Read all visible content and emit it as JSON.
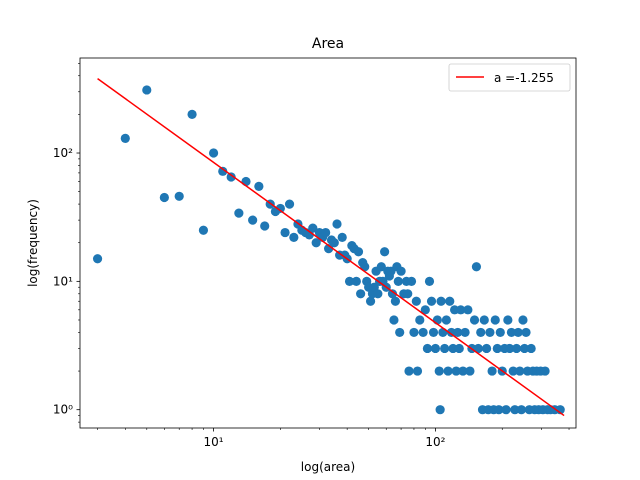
{
  "chart_data": {
    "type": "scatter",
    "title": "Area",
    "xlabel": "log(area)",
    "ylabel": "log(frequency)",
    "xscale": "log",
    "yscale": "log",
    "xlim": [
      2.5,
      430
    ],
    "ylim": [
      0.72,
      550
    ],
    "grid": false,
    "legend_position": "top-right",
    "x_ticks": [
      {
        "value": 10,
        "label": "10¹"
      },
      {
        "value": 100,
        "label": "10²"
      }
    ],
    "y_ticks": [
      {
        "value": 1,
        "label": "10⁰"
      },
      {
        "value": 10,
        "label": "10¹"
      },
      {
        "value": 100,
        "label": "10²"
      }
    ],
    "colors": {
      "points": "#1f77b4",
      "fit": "#ff0000"
    },
    "series": [
      {
        "type": "scatter",
        "points": [
          [
            3,
            15
          ],
          [
            4,
            130
          ],
          [
            5,
            310
          ],
          [
            6,
            45
          ],
          [
            7,
            46
          ],
          [
            8,
            200
          ],
          [
            9,
            25
          ],
          [
            10,
            100
          ],
          [
            11,
            72
          ],
          [
            12,
            65
          ],
          [
            13,
            34
          ],
          [
            14,
            60
          ],
          [
            15,
            30
          ],
          [
            16,
            55
          ],
          [
            17,
            27
          ],
          [
            18,
            40
          ],
          [
            19,
            35
          ],
          [
            20,
            37
          ],
          [
            21,
            24
          ],
          [
            22,
            40
          ],
          [
            23,
            22
          ],
          [
            24,
            28
          ],
          [
            25,
            25
          ],
          [
            26,
            24
          ],
          [
            27,
            23
          ],
          [
            28,
            26
          ],
          [
            29,
            20
          ],
          [
            30,
            24
          ],
          [
            31,
            22
          ],
          [
            32,
            24
          ],
          [
            33,
            18
          ],
          [
            34,
            21
          ],
          [
            35,
            20
          ],
          [
            36,
            28
          ],
          [
            37,
            16
          ],
          [
            38,
            22
          ],
          [
            39,
            16
          ],
          [
            40,
            15
          ],
          [
            41,
            10
          ],
          [
            42,
            19
          ],
          [
            43,
            18
          ],
          [
            44,
            10
          ],
          [
            45,
            17
          ],
          [
            46,
            8
          ],
          [
            47,
            14
          ],
          [
            48,
            13
          ],
          [
            49,
            10
          ],
          [
            50,
            9
          ],
          [
            51,
            7
          ],
          [
            52,
            8
          ],
          [
            53,
            9
          ],
          [
            54,
            12
          ],
          [
            55,
            8
          ],
          [
            56,
            10
          ],
          [
            57,
            13
          ],
          [
            58,
            10
          ],
          [
            59,
            17
          ],
          [
            60,
            9
          ],
          [
            61,
            12
          ],
          [
            62,
            11
          ],
          [
            63,
            12
          ],
          [
            64,
            8
          ],
          [
            65,
            5
          ],
          [
            66,
            7
          ],
          [
            67,
            13
          ],
          [
            68,
            10
          ],
          [
            69,
            4
          ],
          [
            70,
            12
          ],
          [
            72,
            8
          ],
          [
            74,
            10
          ],
          [
            75,
            8
          ],
          [
            76,
            2
          ],
          [
            78,
            10
          ],
          [
            80,
            4
          ],
          [
            82,
            7
          ],
          [
            83,
            2
          ],
          [
            85,
            5
          ],
          [
            88,
            4
          ],
          [
            90,
            6
          ],
          [
            92,
            3
          ],
          [
            94,
            10
          ],
          [
            96,
            7
          ],
          [
            98,
            4
          ],
          [
            100,
            3
          ],
          [
            102,
            5
          ],
          [
            104,
            2
          ],
          [
            105,
            1
          ],
          [
            106,
            7
          ],
          [
            108,
            4
          ],
          [
            110,
            3
          ],
          [
            112,
            5
          ],
          [
            114,
            2
          ],
          [
            116,
            7
          ],
          [
            118,
            4
          ],
          [
            120,
            3
          ],
          [
            122,
            6
          ],
          [
            124,
            2
          ],
          [
            126,
            4
          ],
          [
            128,
            3
          ],
          [
            130,
            6
          ],
          [
            133,
            2
          ],
          [
            136,
            4
          ],
          [
            140,
            6
          ],
          [
            143,
            2
          ],
          [
            146,
            3
          ],
          [
            150,
            5
          ],
          [
            153,
            13
          ],
          [
            156,
            3
          ],
          [
            160,
            4
          ],
          [
            163,
            1
          ],
          [
            166,
            5
          ],
          [
            170,
            3
          ],
          [
            173,
            1
          ],
          [
            176,
            4
          ],
          [
            180,
            2
          ],
          [
            183,
            1
          ],
          [
            186,
            5
          ],
          [
            190,
            3
          ],
          [
            193,
            1
          ],
          [
            196,
            4
          ],
          [
            200,
            2
          ],
          [
            205,
            3
          ],
          [
            208,
            1
          ],
          [
            212,
            5
          ],
          [
            216,
            3
          ],
          [
            220,
            4
          ],
          [
            224,
            2
          ],
          [
            228,
            1
          ],
          [
            232,
            3
          ],
          [
            236,
            4
          ],
          [
            240,
            2
          ],
          [
            244,
            1
          ],
          [
            248,
            5
          ],
          [
            252,
            3
          ],
          [
            256,
            4
          ],
          [
            260,
            2
          ],
          [
            265,
            1
          ],
          [
            270,
            3
          ],
          [
            275,
            2
          ],
          [
            280,
            1
          ],
          [
            286,
            2
          ],
          [
            292,
            1
          ],
          [
            298,
            2
          ],
          [
            305,
            1
          ],
          [
            312,
            2
          ],
          [
            320,
            1
          ],
          [
            330,
            1
          ],
          [
            345,
            1
          ],
          [
            365,
            1
          ]
        ]
      },
      {
        "type": "line",
        "name": "a =-1.255",
        "from": [
          3,
          380
        ],
        "to": [
          380,
          0.9
        ]
      }
    ]
  }
}
